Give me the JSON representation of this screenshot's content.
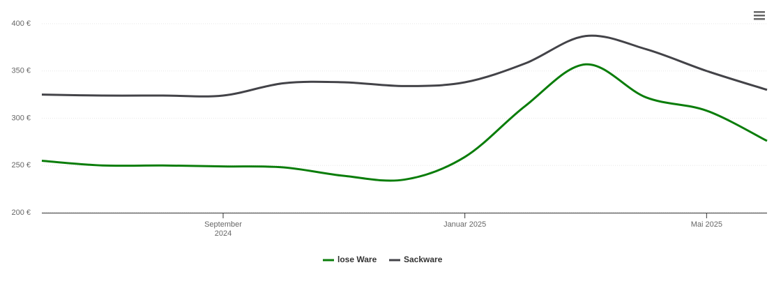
{
  "chart_data": {
    "type": "line",
    "x": [
      "2024-06",
      "2024-07",
      "2024-08",
      "2024-09",
      "2024-10",
      "2024-11",
      "2024-12",
      "2025-01",
      "2025-02",
      "2025-03",
      "2025-04",
      "2025-05",
      "2025-06"
    ],
    "xlim": [
      "2024-06",
      "2025-06"
    ],
    "xticks": [
      {
        "value": "2024-09",
        "label": "September 2024"
      },
      {
        "value": "2025-01",
        "label": "Januar 2025"
      },
      {
        "value": "2025-05",
        "label": "Mai 2025"
      }
    ],
    "ylim": [
      200,
      400
    ],
    "yticks": [
      {
        "value": 200,
        "label": "200 €"
      },
      {
        "value": 250,
        "label": "250 €"
      },
      {
        "value": 300,
        "label": "300 €"
      },
      {
        "value": 350,
        "label": "350 €"
      },
      {
        "value": 400,
        "label": "400 €"
      }
    ],
    "grid": true,
    "legend": "bottom",
    "series": [
      {
        "name": "lose Ware",
        "color": "#0a7d0a",
        "values": [
          255,
          250,
          250,
          249,
          248,
          239,
          235,
          259,
          313,
          357,
          322,
          308,
          276
        ]
      },
      {
        "name": "Sackware",
        "color": "#434348",
        "values": [
          325,
          324,
          324,
          324,
          337,
          338,
          334,
          338,
          358,
          387,
          373,
          350,
          330
        ]
      }
    ]
  }
}
